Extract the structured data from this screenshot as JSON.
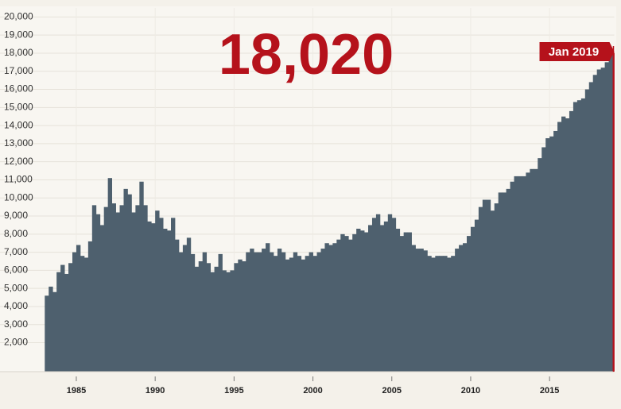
{
  "chart_data": {
    "type": "bar",
    "headline": "18,020",
    "annotations": [
      {
        "x": 2019,
        "label": "Jan 2019"
      }
    ],
    "xlim": [
      1982.95,
      2019.1
    ],
    "xticks": [
      1985,
      1990,
      1995,
      2000,
      2005,
      2010,
      2015
    ],
    "ylim": [
      400,
      20500
    ],
    "yticks": [
      {
        "value": 2000,
        "label": "2,000"
      },
      {
        "value": 3000,
        "label": "3,000"
      },
      {
        "value": 4000,
        "label": "4,000"
      },
      {
        "value": 5000,
        "label": "5,000"
      },
      {
        "value": 6000,
        "label": "6,000"
      },
      {
        "value": 7000,
        "label": "7,000"
      },
      {
        "value": 8000,
        "label": "8,000"
      },
      {
        "value": 9000,
        "label": "9,000"
      },
      {
        "value": 10000,
        "label": "10,000"
      },
      {
        "value": 11000,
        "label": "11,000"
      },
      {
        "value": 12000,
        "label": "12,000"
      },
      {
        "value": 13000,
        "label": "13,000"
      },
      {
        "value": 14000,
        "label": "14,000"
      },
      {
        "value": 15000,
        "label": "15,000"
      },
      {
        "value": 16000,
        "label": "16,000"
      },
      {
        "value": 17000,
        "label": "17,000"
      },
      {
        "value": 18000,
        "label": "18,000"
      },
      {
        "value": 19000,
        "label": "19,000"
      },
      {
        "value": 20000,
        "label": "20,000"
      }
    ],
    "grid": true,
    "color": "#4e606e",
    "highlight_color": "#b5121b",
    "x": [
      1983,
      1983.25,
      1983.5,
      1983.75,
      1984,
      1984.25,
      1984.5,
      1984.75,
      1985,
      1985.25,
      1985.5,
      1985.75,
      1986,
      1986.25,
      1986.5,
      1986.75,
      1987,
      1987.25,
      1987.5,
      1987.75,
      1988,
      1988.25,
      1988.5,
      1988.75,
      1989,
      1989.25,
      1989.5,
      1989.75,
      1990,
      1990.25,
      1990.5,
      1990.75,
      1991,
      1991.25,
      1991.5,
      1991.75,
      1992,
      1992.25,
      1992.5,
      1992.75,
      1993,
      1993.25,
      1993.5,
      1993.75,
      1994,
      1994.25,
      1994.5,
      1994.75,
      1995,
      1995.25,
      1995.5,
      1995.75,
      1996,
      1996.25,
      1996.5,
      1996.75,
      1997,
      1997.25,
      1997.5,
      1997.75,
      1998,
      1998.25,
      1998.5,
      1998.75,
      1999,
      1999.25,
      1999.5,
      1999.75,
      2000,
      2000.25,
      2000.5,
      2000.75,
      2001,
      2001.25,
      2001.5,
      2001.75,
      2002,
      2002.25,
      2002.5,
      2002.75,
      2003,
      2003.25,
      2003.5,
      2003.75,
      2004,
      2004.25,
      2004.5,
      2004.75,
      2005,
      2005.25,
      2005.5,
      2005.75,
      2006,
      2006.25,
      2006.5,
      2006.75,
      2007,
      2007.25,
      2007.5,
      2007.75,
      2008,
      2008.25,
      2008.5,
      2008.75,
      2009,
      2009.25,
      2009.5,
      2009.75,
      2010,
      2010.25,
      2010.5,
      2010.75,
      2011,
      2011.25,
      2011.5,
      2011.75,
      2012,
      2012.25,
      2012.5,
      2012.75,
      2013,
      2013.25,
      2013.5,
      2013.75,
      2014,
      2014.25,
      2014.5,
      2014.75,
      2015,
      2015.25,
      2015.5,
      2015.75,
      2016,
      2016.25,
      2016.5,
      2016.75,
      2017,
      2017.25,
      2017.5,
      2017.75,
      2018,
      2018.25,
      2018.5,
      2018.75,
      2019
    ],
    "values": [
      4600,
      5100,
      4800,
      5900,
      6300,
      5800,
      6400,
      7000,
      7400,
      6800,
      6700,
      7600,
      9600,
      9100,
      8500,
      9500,
      11100,
      9700,
      9200,
      9600,
      10500,
      10200,
      9200,
      9600,
      10900,
      9600,
      8700,
      8600,
      9300,
      8900,
      8300,
      8200,
      8900,
      7700,
      7000,
      7400,
      7800,
      6900,
      6200,
      6500,
      7000,
      6400,
      5900,
      6200,
      6900,
      6000,
      5900,
      6000,
      6400,
      6600,
      6500,
      7000,
      7200,
      7000,
      7000,
      7200,
      7500,
      7000,
      6800,
      7200,
      7000,
      6600,
      6700,
      7000,
      6800,
      6600,
      6800,
      7000,
      6800,
      7000,
      7200,
      7500,
      7400,
      7500,
      7700,
      8000,
      7900,
      7700,
      8000,
      8300,
      8200,
      8100,
      8500,
      8900,
      9100,
      8500,
      8700,
      9100,
      8900,
      8300,
      7900,
      8100,
      8100,
      7400,
      7200,
      7200,
      7100,
      6800,
      6700,
      6800,
      6800,
      6800,
      6700,
      6800,
      7200,
      7400,
      7500,
      7900,
      8400,
      8800,
      9500,
      9900,
      9900,
      9300,
      9700,
      10300,
      10300,
      10500,
      10900,
      11200,
      11200,
      11200,
      11400,
      11600,
      11600,
      12200,
      12800,
      13300,
      13400,
      13700,
      14200,
      14500,
      14400,
      14800,
      15300,
      15400,
      15500,
      16000,
      16400,
      16800,
      17100,
      17200,
      17500,
      17900,
      18020
    ]
  }
}
